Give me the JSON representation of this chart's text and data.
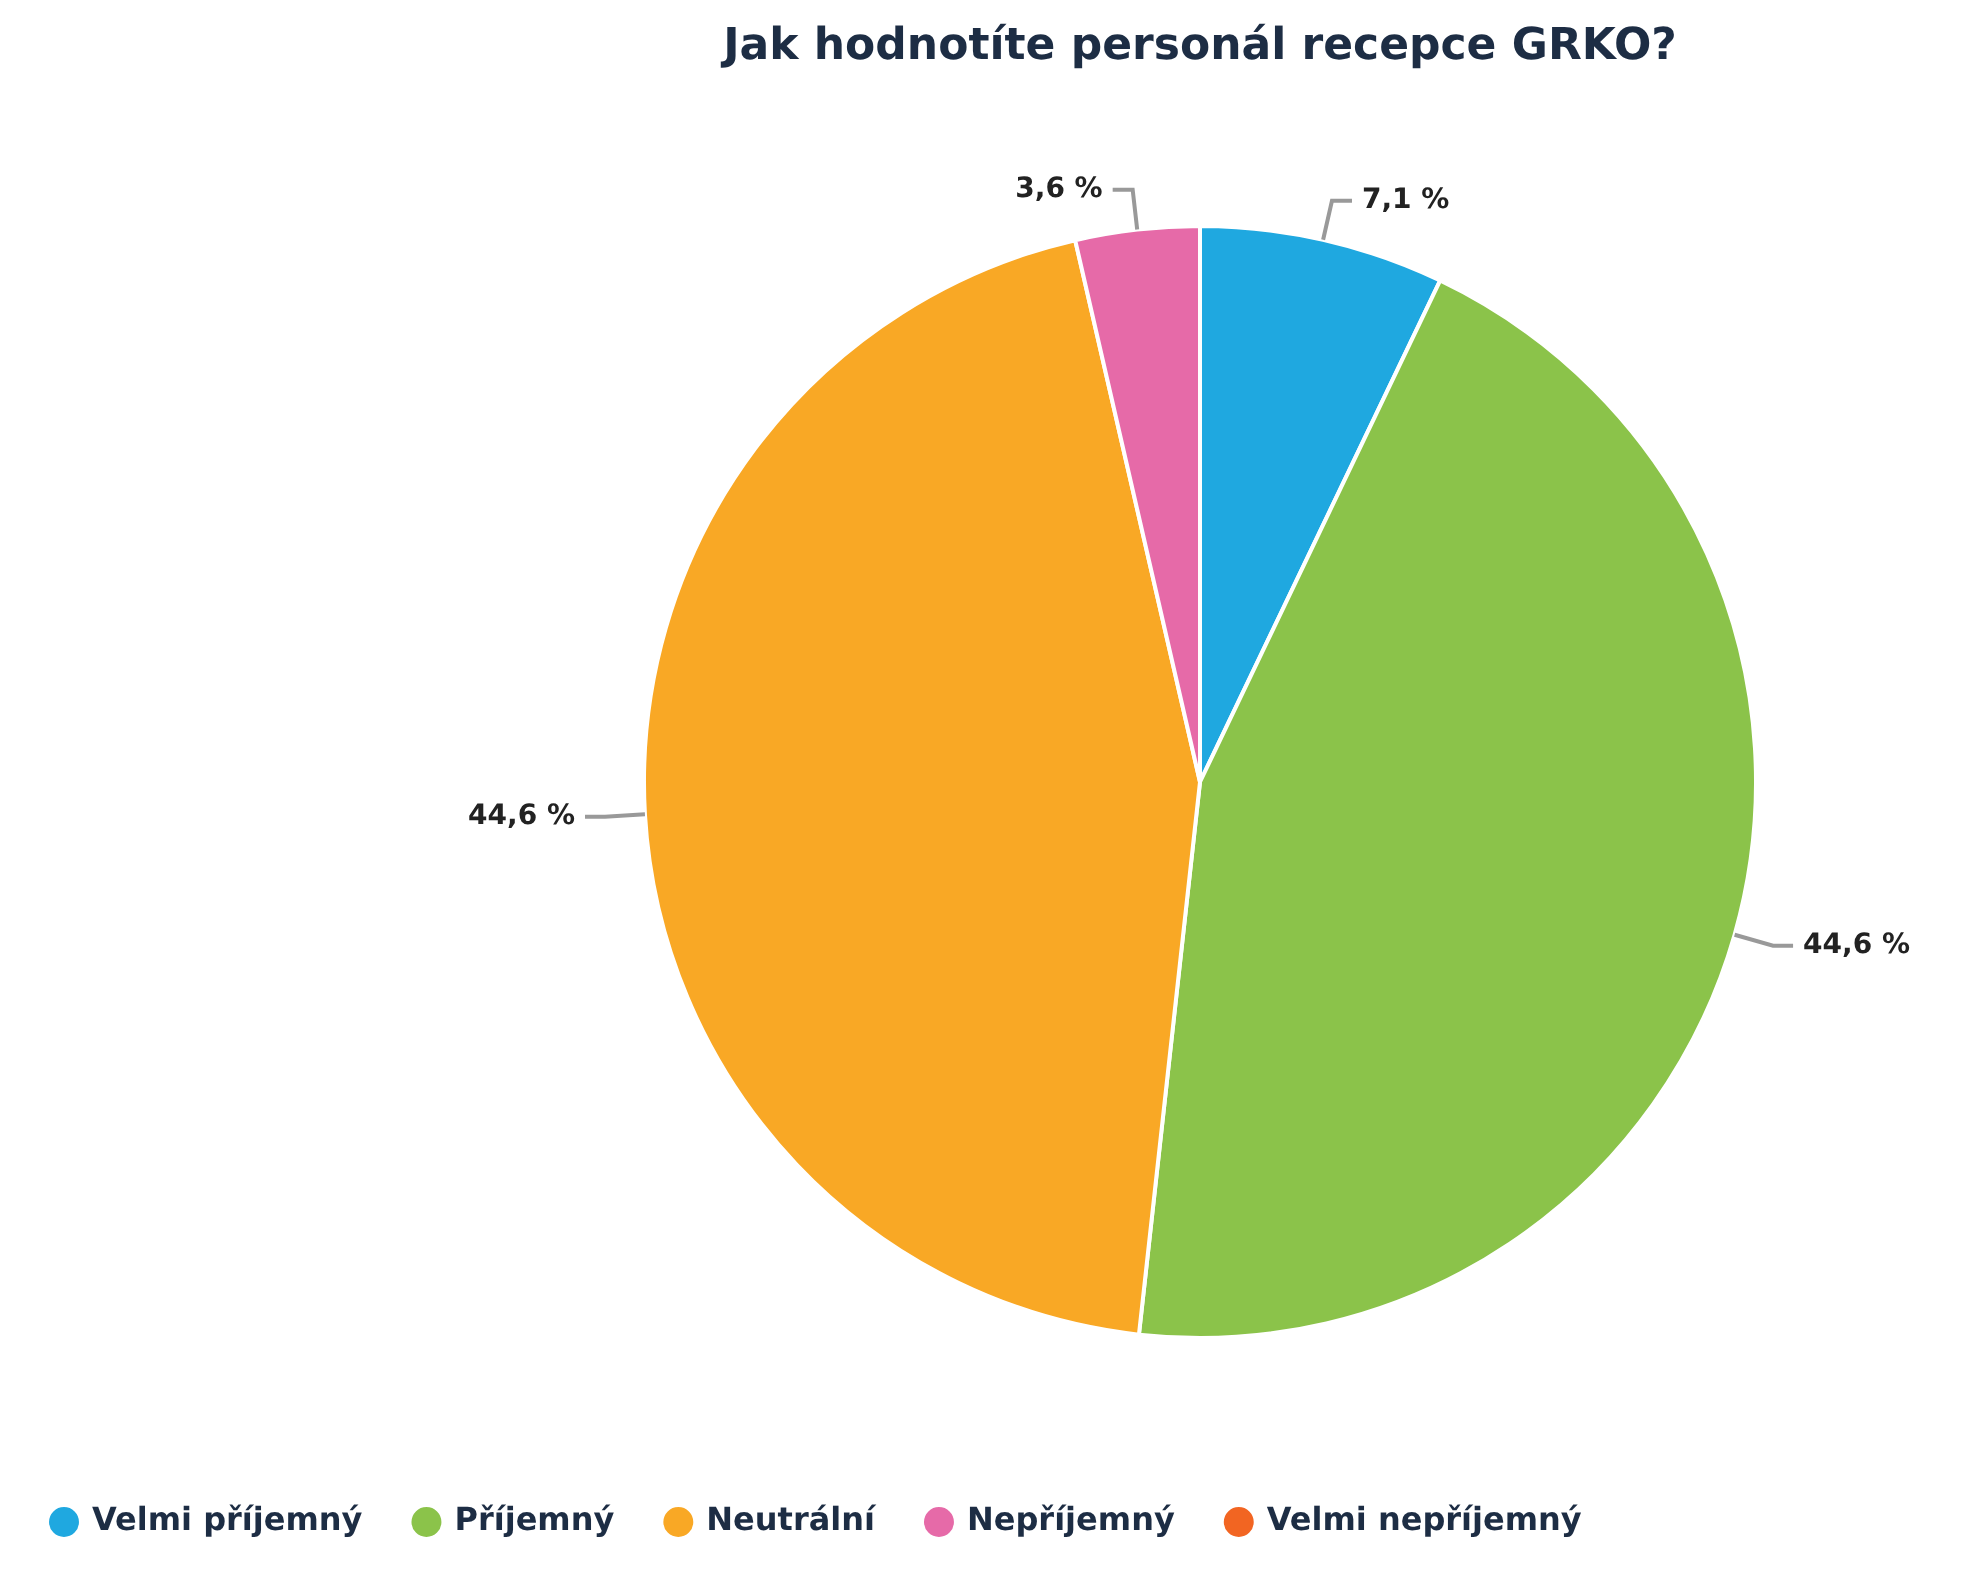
{
  "chart_data": {
    "type": "pie",
    "title": "Jak hodnotíte personál recepce GRKO?",
    "categories": [
      "Velmi příjemný",
      "Příjemný",
      "Neutrální",
      "Nepříjemný",
      "Velmi nepříjemný"
    ],
    "values": [
      7.1,
      44.6,
      44.6,
      3.6,
      0
    ],
    "colors": [
      "#1fa8e0",
      "#8bc34a",
      "#f9a825",
      "#e66aa8",
      "#f26522"
    ],
    "value_labels": [
      "7,1 %",
      "44,6 %",
      "44,6 %",
      "3,6 %",
      null
    ],
    "legend": "bottom left"
  }
}
